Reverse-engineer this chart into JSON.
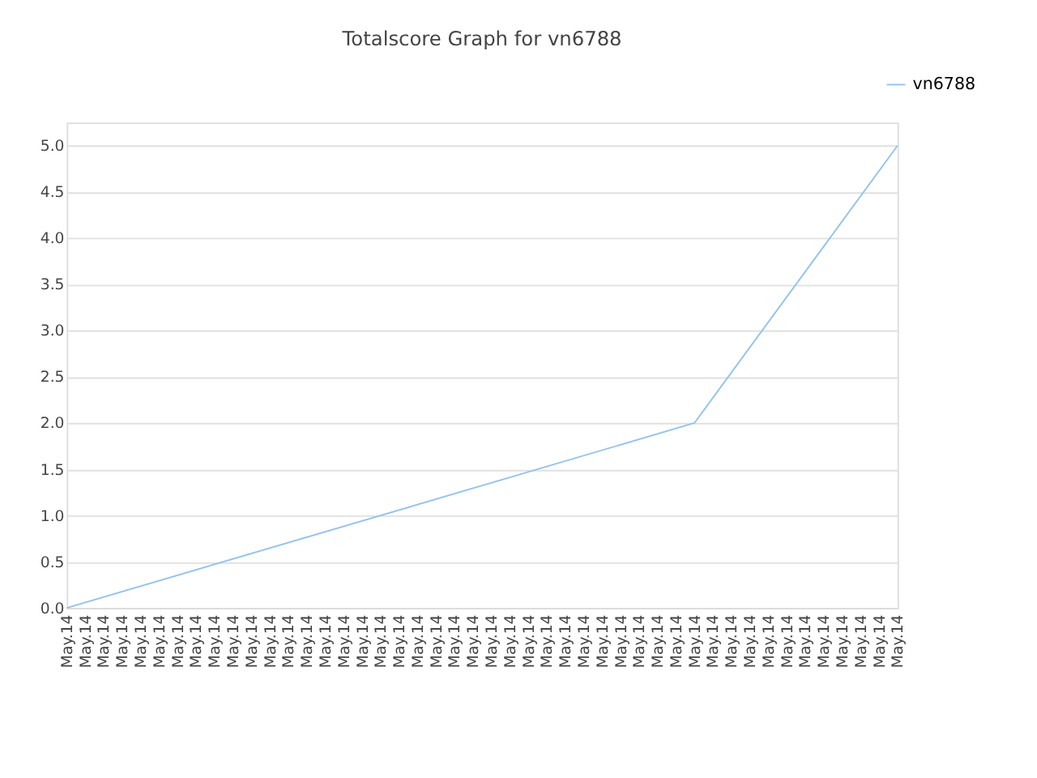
{
  "chart_data": {
    "type": "line",
    "title": "Totalscore Graph for vn6788",
    "categories": [
      "May.14",
      "May.14",
      "May.14",
      "May.14",
      "May.14",
      "May.14",
      "May.14",
      "May.14",
      "May.14",
      "May.14",
      "May.14",
      "May.14",
      "May.14",
      "May.14",
      "May.14",
      "May.14",
      "May.14",
      "May.14",
      "May.14",
      "May.14",
      "May.14",
      "May.14",
      "May.14",
      "May.14",
      "May.14",
      "May.14",
      "May.14",
      "May.14",
      "May.14",
      "May.14",
      "May.14",
      "May.14",
      "May.14",
      "May.14",
      "May.14",
      "May.14",
      "May.14",
      "May.14",
      "May.14",
      "May.14",
      "May.14",
      "May.14",
      "May.14",
      "May.14",
      "May.14",
      "May.14"
    ],
    "series": [
      {
        "name": "vn6788",
        "color": "#90c2f0",
        "values": [
          0,
          null,
          null,
          null,
          null,
          null,
          null,
          null,
          null,
          null,
          null,
          null,
          null,
          null,
          null,
          null,
          null,
          null,
          null,
          null,
          null,
          null,
          null,
          null,
          null,
          null,
          null,
          null,
          null,
          null,
          null,
          null,
          null,
          null,
          2,
          null,
          null,
          null,
          null,
          null,
          null,
          null,
          null,
          null,
          null,
          5
        ]
      }
    ],
    "ylim": [
      0,
      5.25
    ],
    "yticks": [
      {
        "value": 0,
        "label": "0.0"
      },
      0.5,
      {
        "value": 1,
        "label": "1.0"
      },
      1.5,
      {
        "value": 2,
        "label": "2.0"
      },
      2.5,
      {
        "value": 3,
        "label": "3.0"
      },
      3.5,
      {
        "value": 4,
        "label": "4.0"
      },
      4.5,
      {
        "value": 5,
        "label": "5.0"
      }
    ],
    "grid": "y",
    "legend": "top right",
    "marker": "none",
    "line_style": "solid"
  }
}
